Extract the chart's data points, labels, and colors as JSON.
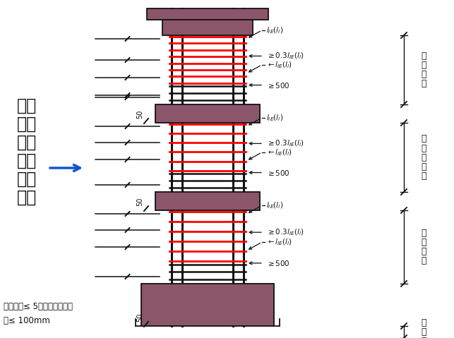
{
  "bg_color": "#ffffff",
  "wall_color": "#8B566B",
  "rebar_color": "#111111",
  "stirrup_red": "#ff0000",
  "text_color": "#111111",
  "arrow_color": "#1155cc",
  "left_title_lines": [
    "纵筋",
    "绑扎",
    "连接",
    "时箍",
    "筋的",
    "设置"
  ],
  "bottom_note1": "箍筋间距≤ 5倍纵筋最小直径",
  "bottom_note2": "且≤ 100mm",
  "floor_labels": [
    [
      "顶",
      "层",
      "层",
      "高"
    ],
    [
      "中",
      "间",
      "层",
      "层",
      "高"
    ],
    [
      "首",
      "层",
      "层",
      "高"
    ],
    [
      "基",
      "础",
      "高"
    ]
  ]
}
